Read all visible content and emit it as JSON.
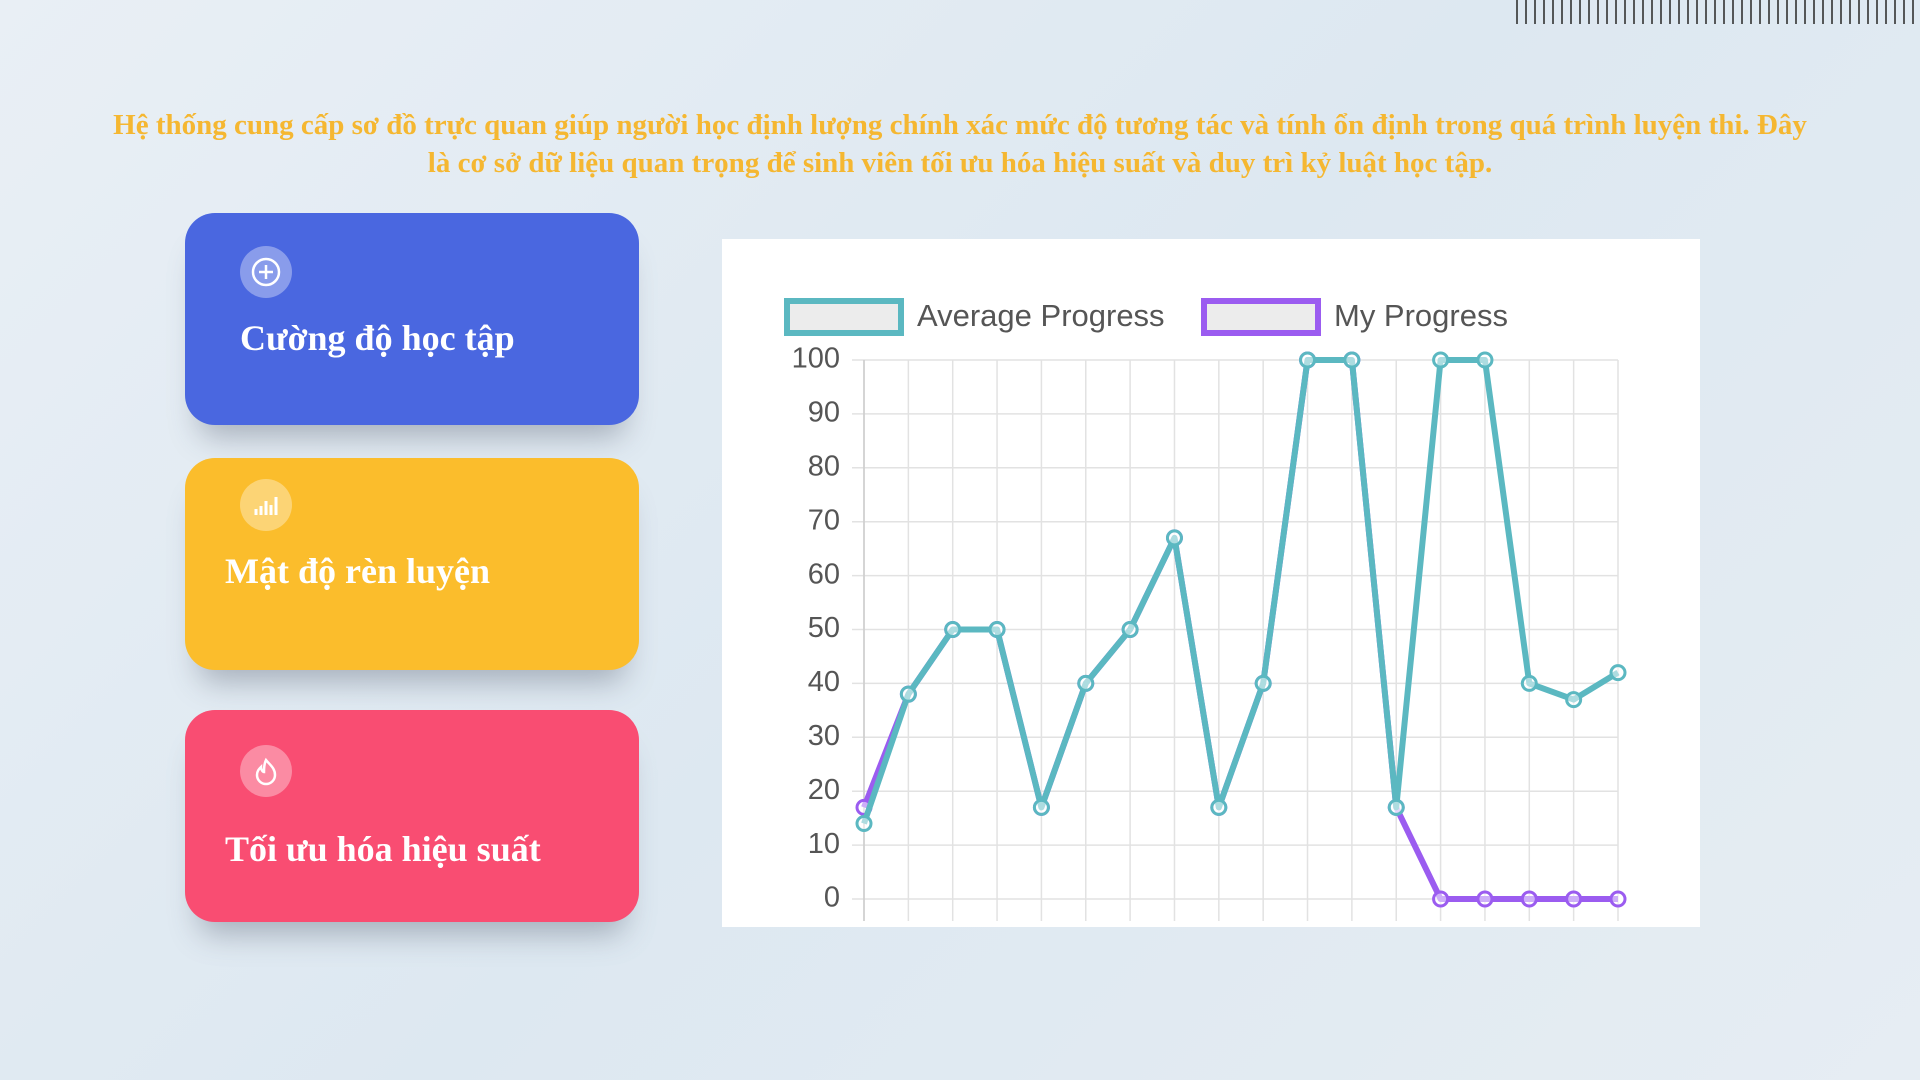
{
  "description": "Hệ thống cung cấp sơ đồ trực quan giúp người học định lượng chính xác mức độ tương tác và tính ổn định trong quá trình luyện thi. Đây là cơ sở dữ liệu quan trọng để sinh viên tối ưu hóa hiệu suất và duy trì kỷ luật học tập.",
  "cards": [
    {
      "title": "Cường độ học tập"
    },
    {
      "title": "Mật độ rèn luyện"
    },
    {
      "title": "Tối ưu hóa hiệu suất"
    }
  ],
  "chart_data": {
    "type": "line",
    "categories": [
      null,
      null,
      null,
      null,
      null,
      null,
      null,
      null,
      null,
      null,
      null,
      null,
      null,
      null,
      null,
      null,
      null,
      null
    ],
    "series": [
      {
        "name": "Average Progress",
        "color": "#5bb8c1",
        "values": [
          14,
          38,
          50,
          50,
          17,
          40,
          50,
          67,
          17,
          40,
          100,
          100,
          17,
          100,
          100,
          40,
          37,
          42
        ]
      },
      {
        "name": "My Progress",
        "color": "#9b5cf0",
        "values": [
          17,
          38,
          50,
          50,
          17,
          40,
          50,
          67,
          17,
          40,
          100,
          100,
          17,
          0,
          0,
          0,
          0,
          0
        ]
      }
    ],
    "ylim": [
      0,
      100
    ],
    "yticks": [
      0,
      10,
      20,
      30,
      40,
      50,
      60,
      70,
      80,
      90,
      100
    ],
    "grid": true,
    "legend": "top"
  }
}
